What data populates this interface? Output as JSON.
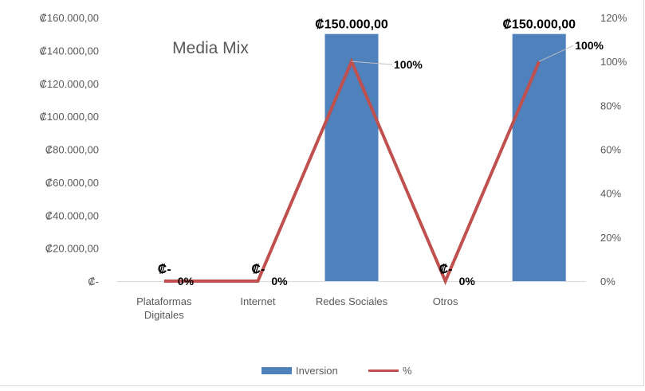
{
  "chart_data": {
    "type": "bar",
    "title": "Media Mix",
    "categories": [
      "Plataformas Digitales",
      "Internet",
      "Redes Sociales",
      "Otros",
      ""
    ],
    "category_lines": [
      [
        "Plataformas",
        "Digitales"
      ],
      [
        "Internet"
      ],
      [
        "Redes Sociales"
      ],
      [
        "Otros"
      ],
      [
        ""
      ]
    ],
    "series": [
      {
        "name": "Inversion",
        "type": "bar",
        "axis": "left",
        "color": "#4f81bd",
        "values": [
          0,
          0,
          150000,
          0,
          150000
        ],
        "labels": [
          "₡-",
          "₡-",
          "₡150.000,00",
          "₡-",
          "₡150.000,00"
        ]
      },
      {
        "name": "%",
        "type": "line",
        "axis": "right",
        "color": "#c0504d",
        "values": [
          0,
          0,
          100,
          0,
          100
        ],
        "labels": [
          "0%",
          "0%",
          "100%",
          "0%",
          "100%"
        ]
      }
    ],
    "y_left": {
      "range": [
        0,
        160000
      ],
      "ticks": [
        0,
        20000,
        40000,
        60000,
        80000,
        100000,
        120000,
        140000,
        160000
      ],
      "tick_labels": [
        "₡-",
        "₡20.000,00",
        "₡40.000,00",
        "₡60.000,00",
        "₡80.000,00",
        "₡100.000,00",
        "₡120.000,00",
        "₡140.000,00",
        "₡160.000,00"
      ]
    },
    "y_right": {
      "range": [
        0,
        120
      ],
      "ticks": [
        0,
        20,
        40,
        60,
        80,
        100,
        120
      ],
      "tick_labels": [
        "0%",
        "20%",
        "40%",
        "60%",
        "80%",
        "100%",
        "120%"
      ]
    },
    "grid": false,
    "legend_position": "bottom"
  }
}
